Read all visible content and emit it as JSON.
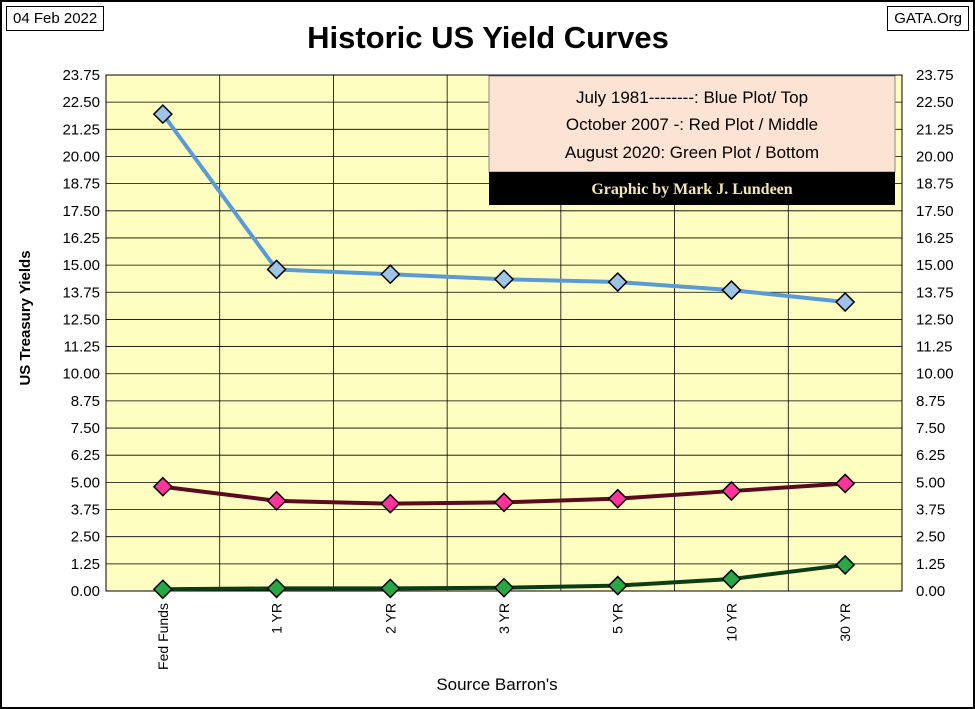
{
  "header": {
    "date": "04 Feb 2022",
    "source_site": "GATA.Org",
    "title": "Historic US Yield Curves"
  },
  "legend_box": {
    "lines": [
      "July 1981--------: Blue Plot/ Top",
      "October 2007 -: Red Plot / Middle",
      "August 2020: Green Plot / Bottom"
    ],
    "credit": "Graphic by Mark J. Lundeen",
    "background": "#fde3d3",
    "credit_background": "#000000",
    "credit_color": "#f4e6b4"
  },
  "colors": {
    "plot_background": "#fefec0"
  },
  "chart_data": {
    "type": "line",
    "title": "Historic US Yield Curves",
    "xlabel": "Source Barron's",
    "ylabel": "US Treasury Yields",
    "categories": [
      "Fed Funds",
      "1 YR",
      "2 YR",
      "3 YR",
      "5 YR",
      "10 YR",
      "30 YR"
    ],
    "yticks": [
      "0.00",
      "1.25",
      "2.50",
      "3.75",
      "5.00",
      "6.25",
      "7.50",
      "8.75",
      "10.00",
      "11.25",
      "12.50",
      "13.75",
      "15.00",
      "16.25",
      "17.50",
      "18.75",
      "20.00",
      "21.25",
      "22.50",
      "23.75"
    ],
    "ylim": [
      0,
      23.75
    ],
    "grid": true,
    "series": [
      {
        "label": "July 1981",
        "line_color": "#5b9bd5",
        "marker_color": "#9dc3e6",
        "values": [
          21.95,
          14.8,
          14.58,
          14.35,
          14.22,
          13.85,
          13.3
        ]
      },
      {
        "label": "October 2007",
        "line_color": "#5c0a1e",
        "marker_color": "#ff3399",
        "values": [
          4.8,
          4.15,
          4.02,
          4.08,
          4.25,
          4.6,
          4.95
        ]
      },
      {
        "label": "August 2020",
        "line_color": "#0b3d16",
        "marker_color": "#28a745",
        "values": [
          0.08,
          0.12,
          0.12,
          0.15,
          0.25,
          0.55,
          1.2
        ]
      }
    ]
  }
}
